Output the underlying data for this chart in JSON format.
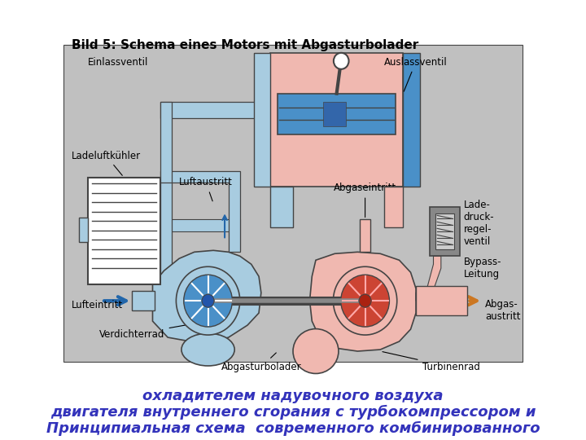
{
  "title_line1": "Принципиальная схема  современного комбинированного",
  "title_line2": "двигателя внутреннего сгорания с турбокомпрессором и",
  "title_line3": "охладителем надувочного воздуха",
  "title_color": "#3333BB",
  "title_fontsize": 13,
  "caption": "Bild 5: Schema eines Motors mit Abgasturbolader",
  "caption_fontsize": 11,
  "bg_color": "#ffffff",
  "diagram_bg": "#c0c0c0",
  "blue_color": "#4a90c8",
  "light_blue": "#a8cce0",
  "pink_color": "#e08878",
  "light_pink": "#f0b8b0",
  "red_color": "#cc3322",
  "dark_gray": "#444444",
  "medium_gray": "#888888",
  "arrow_blue": "#2266aa",
  "arrow_orange": "#cc7722"
}
